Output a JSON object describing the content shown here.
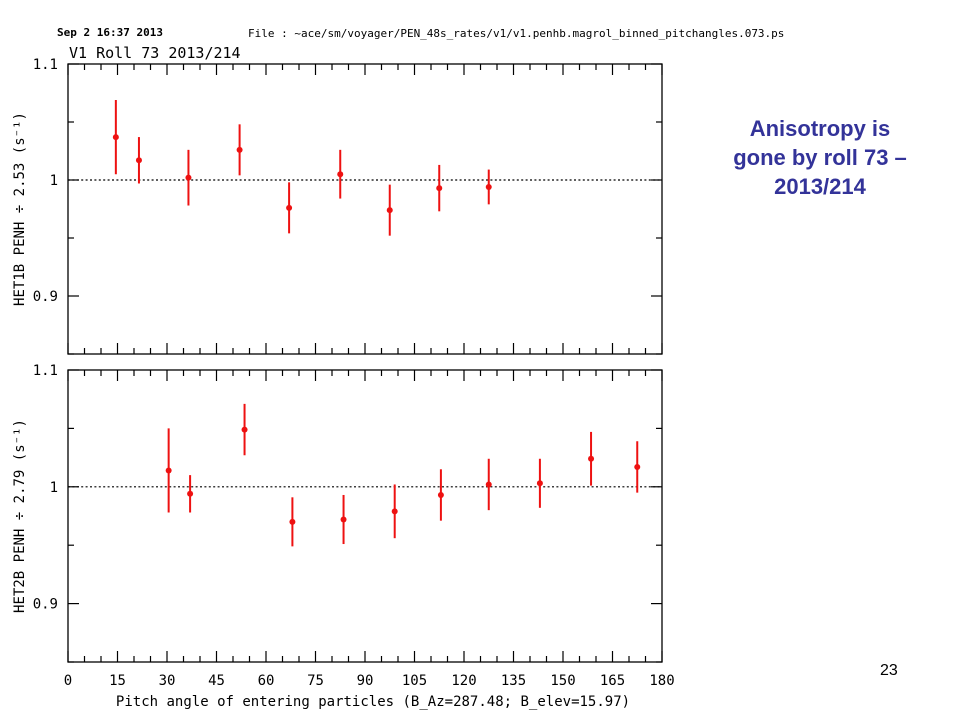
{
  "header": {
    "timestamp": "Sep  2 16:37 2013",
    "file_label": "File : ~ace/sm/voyager/PEN_48s_rates/v1/v1.penhb.magrol_binned_pitchangles.073.ps",
    "plot_title": "V1 Roll 73 2013/214"
  },
  "callout": {
    "line1": "Anisotropy is",
    "line2": "gone by roll 73 –",
    "line3": "2013/214"
  },
  "slide_number": "23",
  "colors": {
    "marker": "#ee1111",
    "callout": "#333399",
    "axis": "#000000"
  },
  "chart_data": [
    {
      "type": "scatter",
      "ylabel": "HET1B PENH ÷ 2.53 (s⁻¹)",
      "xlim": [
        0,
        180
      ],
      "ylim": [
        0.85,
        1.1
      ],
      "yticks": [
        "1.1",
        "1",
        "0.9"
      ],
      "reference_line": 1.0,
      "series": [
        {
          "x": [
            14.5,
            21.5,
            36.5,
            52,
            67,
            82.5,
            97.5,
            112.5,
            127.5
          ],
          "y": [
            1.037,
            1.017,
            1.002,
            1.026,
            0.976,
            1.005,
            0.974,
            0.993,
            0.994
          ],
          "y_err": [
            0.032,
            0.02,
            0.024,
            0.022,
            0.022,
            0.021,
            0.022,
            0.02,
            0.015
          ]
        }
      ]
    },
    {
      "type": "scatter",
      "ylabel": "HET2B PENH ÷ 2.79 (s⁻¹)",
      "xlabel": "Pitch angle of entering particles (B_Az=287.48; B_elev=15.97)",
      "xlim": [
        0,
        180
      ],
      "ylim": [
        0.85,
        1.1
      ],
      "xticks": [
        "0",
        "15",
        "30",
        "45",
        "60",
        "75",
        "90",
        "105",
        "120",
        "135",
        "150",
        "165",
        "180"
      ],
      "yticks": [
        "1.1",
        "1",
        "0.9"
      ],
      "reference_line": 1.0,
      "series": [
        {
          "x": [
            30.5,
            37,
            53.5,
            68,
            83.5,
            99,
            113,
            127.5,
            143,
            158.5,
            172.5
          ],
          "y": [
            1.014,
            0.994,
            1.049,
            0.97,
            0.972,
            0.979,
            0.993,
            1.002,
            1.003,
            1.024,
            1.017
          ],
          "y_err": [
            0.036,
            0.016,
            0.022,
            0.021,
            0.021,
            0.023,
            0.022,
            0.022,
            0.021,
            0.023,
            0.022
          ]
        }
      ]
    }
  ]
}
